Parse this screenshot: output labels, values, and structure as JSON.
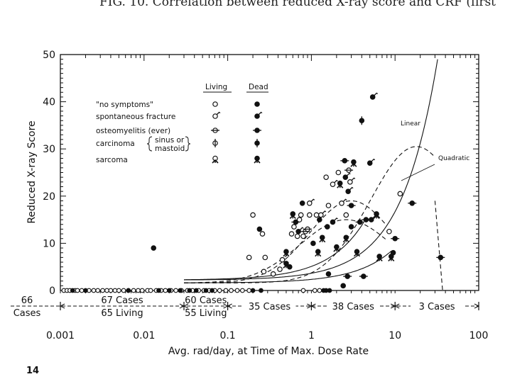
{
  "caption": "FIG. 10. Correlation between reduced X-ray score and CRF (first",
  "page_number": "14",
  "chart_data": {
    "type": "scatter",
    "title": "",
    "xlabel": "Avg. rad/day, at Time of Max. Dose Rate",
    "ylabel": "Reduced X-ray Score",
    "x_scale": "log",
    "xlim": [
      0.001,
      100
    ],
    "ylim": [
      0,
      50
    ],
    "x_ticks": [
      0.001,
      0.01,
      0.1,
      1,
      10,
      100
    ],
    "x_tick_labels": [
      "0.001",
      "0.01",
      "0.1",
      "1",
      "10",
      "100"
    ],
    "y_ticks": [
      0,
      10,
      20,
      30,
      40,
      50
    ],
    "y_tick_labels": [
      "0",
      "10",
      "20",
      "30",
      "40",
      "50"
    ],
    "legend": {
      "position": "top-left",
      "headers": [
        "Living",
        "Dead"
      ],
      "entries": [
        {
          "label": "\"no symptoms\"",
          "symbol": "circle"
        },
        {
          "label": "spontaneous fracture",
          "symbol": "fracture"
        },
        {
          "label": "osteomyelitis (ever)",
          "symbol": "osteo"
        },
        {
          "label": "carcinoma",
          "bracket": [
            "sinus or",
            "mastoid"
          ],
          "symbol": "carcinoma"
        },
        {
          "label": "sarcoma",
          "symbol": "sarcoma"
        }
      ]
    },
    "curves": [
      {
        "name": "Linear"
      },
      {
        "name": "Quadratic"
      }
    ],
    "bins": [
      {
        "lines": [
          "66",
          "Cases"
        ]
      },
      {
        "lines": [
          "67 Cases",
          "65 Living"
        ]
      },
      {
        "lines": [
          "60 Cases",
          "55 Living"
        ]
      },
      {
        "lines": [
          "35 Cases"
        ]
      },
      {
        "lines": [
          "38 Cases"
        ]
      },
      {
        "lines": [
          "3 Cases"
        ]
      }
    ],
    "bin_edges": [
      0.001,
      0.03,
      0.1,
      1,
      10,
      100
    ],
    "zero_points": {
      "living_x": [
        0.0011,
        0.0012,
        0.0013,
        0.0015,
        0.0016,
        0.0018,
        0.0022,
        0.0025,
        0.0028,
        0.0032,
        0.0036,
        0.004,
        0.0045,
        0.005,
        0.0057,
        0.0065,
        0.0075,
        0.0085,
        0.0095,
        0.011,
        0.012,
        0.014,
        0.016,
        0.018,
        0.021,
        0.024,
        0.028,
        0.033,
        0.038,
        0.045,
        0.052,
        0.06,
        0.07,
        0.08,
        0.095,
        0.11,
        0.13,
        0.15,
        0.18,
        0.8,
        1.1,
        1.25
      ],
      "dead_x": [
        0.0014,
        0.002,
        0.0065,
        0.015,
        0.02,
        0.027,
        0.035,
        0.042,
        0.055,
        0.065,
        0.2,
        0.25,
        1.4,
        1.5,
        1.65
      ]
    },
    "points": [
      {
        "x": 0.013,
        "y": 9,
        "status": "dead",
        "kind": "none"
      },
      {
        "x": 0.18,
        "y": 7,
        "status": "living",
        "kind": "none"
      },
      {
        "x": 0.2,
        "y": 16,
        "status": "living",
        "kind": "none"
      },
      {
        "x": 0.24,
        "y": 13,
        "status": "dead",
        "kind": "none"
      },
      {
        "x": 0.26,
        "y": 12,
        "status": "living",
        "kind": "none"
      },
      {
        "x": 0.27,
        "y": 4,
        "status": "living",
        "kind": "none"
      },
      {
        "x": 0.28,
        "y": 7,
        "status": "living",
        "kind": "none"
      },
      {
        "x": 0.35,
        "y": 3.5,
        "status": "living",
        "kind": "none"
      },
      {
        "x": 0.42,
        "y": 4.5,
        "status": "living",
        "kind": "none"
      },
      {
        "x": 0.45,
        "y": 6.5,
        "status": "living",
        "kind": "none"
      },
      {
        "x": 0.5,
        "y": 5.5,
        "status": "dead",
        "kind": "sarcoma"
      },
      {
        "x": 0.55,
        "y": 5,
        "status": "dead",
        "kind": "none"
      },
      {
        "x": 0.5,
        "y": 8,
        "status": "dead",
        "kind": "sarcoma"
      },
      {
        "x": 0.58,
        "y": 12,
        "status": "living",
        "kind": "none"
      },
      {
        "x": 0.6,
        "y": 16,
        "status": "dead",
        "kind": "sarcoma"
      },
      {
        "x": 0.62,
        "y": 13.5,
        "status": "living",
        "kind": "none"
      },
      {
        "x": 0.65,
        "y": 14.5,
        "status": "dead",
        "kind": "osteo"
      },
      {
        "x": 0.68,
        "y": 11.5,
        "status": "living",
        "kind": "none"
      },
      {
        "x": 0.7,
        "y": 12.5,
        "status": "dead",
        "kind": "fracture"
      },
      {
        "x": 0.72,
        "y": 15,
        "status": "living",
        "kind": "none"
      },
      {
        "x": 0.75,
        "y": 16,
        "status": "living",
        "kind": "none"
      },
      {
        "x": 0.78,
        "y": 18.5,
        "status": "dead",
        "kind": "none"
      },
      {
        "x": 0.8,
        "y": 11.5,
        "status": "living",
        "kind": "none"
      },
      {
        "x": 0.85,
        "y": 12.5,
        "status": "living",
        "kind": "osteo"
      },
      {
        "x": 0.9,
        "y": 13,
        "status": "living",
        "kind": "osteo"
      },
      {
        "x": 0.95,
        "y": 16,
        "status": "living",
        "kind": "none"
      },
      {
        "x": 0.95,
        "y": 18.5,
        "status": "living",
        "kind": "fracture"
      },
      {
        "x": 1.05,
        "y": 10,
        "status": "dead",
        "kind": "none"
      },
      {
        "x": 1.15,
        "y": 16,
        "status": "living",
        "kind": "none"
      },
      {
        "x": 1.2,
        "y": 8,
        "status": "dead",
        "kind": "sarcoma"
      },
      {
        "x": 1.25,
        "y": 15,
        "status": "dead",
        "kind": "none"
      },
      {
        "x": 1.35,
        "y": 11,
        "status": "dead",
        "kind": "sarcoma"
      },
      {
        "x": 1.3,
        "y": 16,
        "status": "living",
        "kind": "fracture"
      },
      {
        "x": 1.5,
        "y": 24,
        "status": "living",
        "kind": "none"
      },
      {
        "x": 1.55,
        "y": 13.5,
        "status": "dead",
        "kind": "none"
      },
      {
        "x": 1.6,
        "y": 18,
        "status": "living",
        "kind": "none"
      },
      {
        "x": 1.6,
        "y": 3.5,
        "status": "dead",
        "kind": "none"
      },
      {
        "x": 1.8,
        "y": 22.5,
        "status": "living",
        "kind": "fracture"
      },
      {
        "x": 1.8,
        "y": 14.5,
        "status": "dead",
        "kind": "fracture"
      },
      {
        "x": 2.0,
        "y": 9,
        "status": "dead",
        "kind": "sarcoma"
      },
      {
        "x": 2.1,
        "y": 25,
        "status": "living",
        "kind": "none"
      },
      {
        "x": 2.2,
        "y": 22.5,
        "status": "dead",
        "kind": "sarcoma"
      },
      {
        "x": 2.3,
        "y": 18.5,
        "status": "living",
        "kind": "fracture"
      },
      {
        "x": 2.4,
        "y": 1,
        "status": "dead",
        "kind": "none"
      },
      {
        "x": 2.5,
        "y": 27.5,
        "status": "dead",
        "kind": "osteo"
      },
      {
        "x": 2.55,
        "y": 24,
        "status": "dead",
        "kind": "fracture"
      },
      {
        "x": 2.6,
        "y": 16,
        "status": "living",
        "kind": "none"
      },
      {
        "x": 2.6,
        "y": 11,
        "status": "dead",
        "kind": "sarcoma"
      },
      {
        "x": 2.7,
        "y": 3,
        "status": "dead",
        "kind": "osteo"
      },
      {
        "x": 2.75,
        "y": 21,
        "status": "dead",
        "kind": "fracture"
      },
      {
        "x": 2.8,
        "y": 25.5,
        "status": "living",
        "kind": "osteo"
      },
      {
        "x": 2.9,
        "y": 23,
        "status": "living",
        "kind": "fracture"
      },
      {
        "x": 3.0,
        "y": 13.5,
        "status": "dead",
        "kind": "none"
      },
      {
        "x": 3.0,
        "y": 18,
        "status": "dead",
        "kind": "osteo"
      },
      {
        "x": 3.2,
        "y": 27,
        "status": "dead",
        "kind": "sarcoma"
      },
      {
        "x": 3.5,
        "y": 8,
        "status": "dead",
        "kind": "sarcoma"
      },
      {
        "x": 3.8,
        "y": 14.5,
        "status": "dead",
        "kind": "osteo"
      },
      {
        "x": 4.2,
        "y": 3,
        "status": "dead",
        "kind": "osteo"
      },
      {
        "x": 4.0,
        "y": 36,
        "status": "dead",
        "kind": "carcinoma"
      },
      {
        "x": 4.5,
        "y": 15,
        "status": "dead",
        "kind": "osteo"
      },
      {
        "x": 5.0,
        "y": 27,
        "status": "dead",
        "kind": "fracture"
      },
      {
        "x": 5.4,
        "y": 41,
        "status": "dead",
        "kind": "fracture"
      },
      {
        "x": 5.2,
        "y": 15,
        "status": "dead",
        "kind": "fracture"
      },
      {
        "x": 6.0,
        "y": 16,
        "status": "dead",
        "kind": "sarcoma"
      },
      {
        "x": 6.5,
        "y": 7,
        "status": "dead",
        "kind": "sarcoma"
      },
      {
        "x": 8.5,
        "y": 12.5,
        "status": "living",
        "kind": "none"
      },
      {
        "x": 9.0,
        "y": 7,
        "status": "dead",
        "kind": "sarcoma"
      },
      {
        "x": 9.5,
        "y": 8,
        "status": "dead",
        "kind": "none"
      },
      {
        "x": 10.0,
        "y": 11,
        "status": "dead",
        "kind": "osteo"
      },
      {
        "x": 11.5,
        "y": 20.5,
        "status": "living",
        "kind": "none"
      },
      {
        "x": 16.0,
        "y": 18.5,
        "status": "dead",
        "kind": "osteo"
      },
      {
        "x": 35.0,
        "y": 7,
        "status": "dead",
        "kind": "osteo"
      }
    ]
  }
}
